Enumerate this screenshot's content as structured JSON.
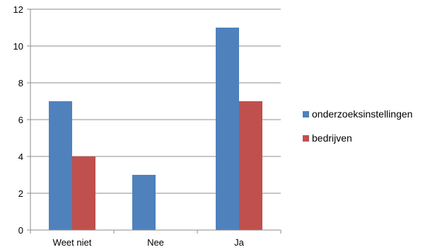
{
  "chart_data": {
    "type": "bar",
    "categories": [
      "Weet niet",
      "Nee",
      "Ja"
    ],
    "series": [
      {
        "name": "onderzoeksinstellingen",
        "values": [
          7,
          3,
          11
        ],
        "color": "#4F81BD"
      },
      {
        "name": "bedrijven",
        "values": [
          4,
          0,
          7
        ],
        "color": "#C0504D"
      }
    ],
    "ylim": [
      0,
      12
    ],
    "yticks": [
      0,
      2,
      4,
      6,
      8,
      10,
      12
    ],
    "grid": true,
    "legend_position": "right"
  }
}
